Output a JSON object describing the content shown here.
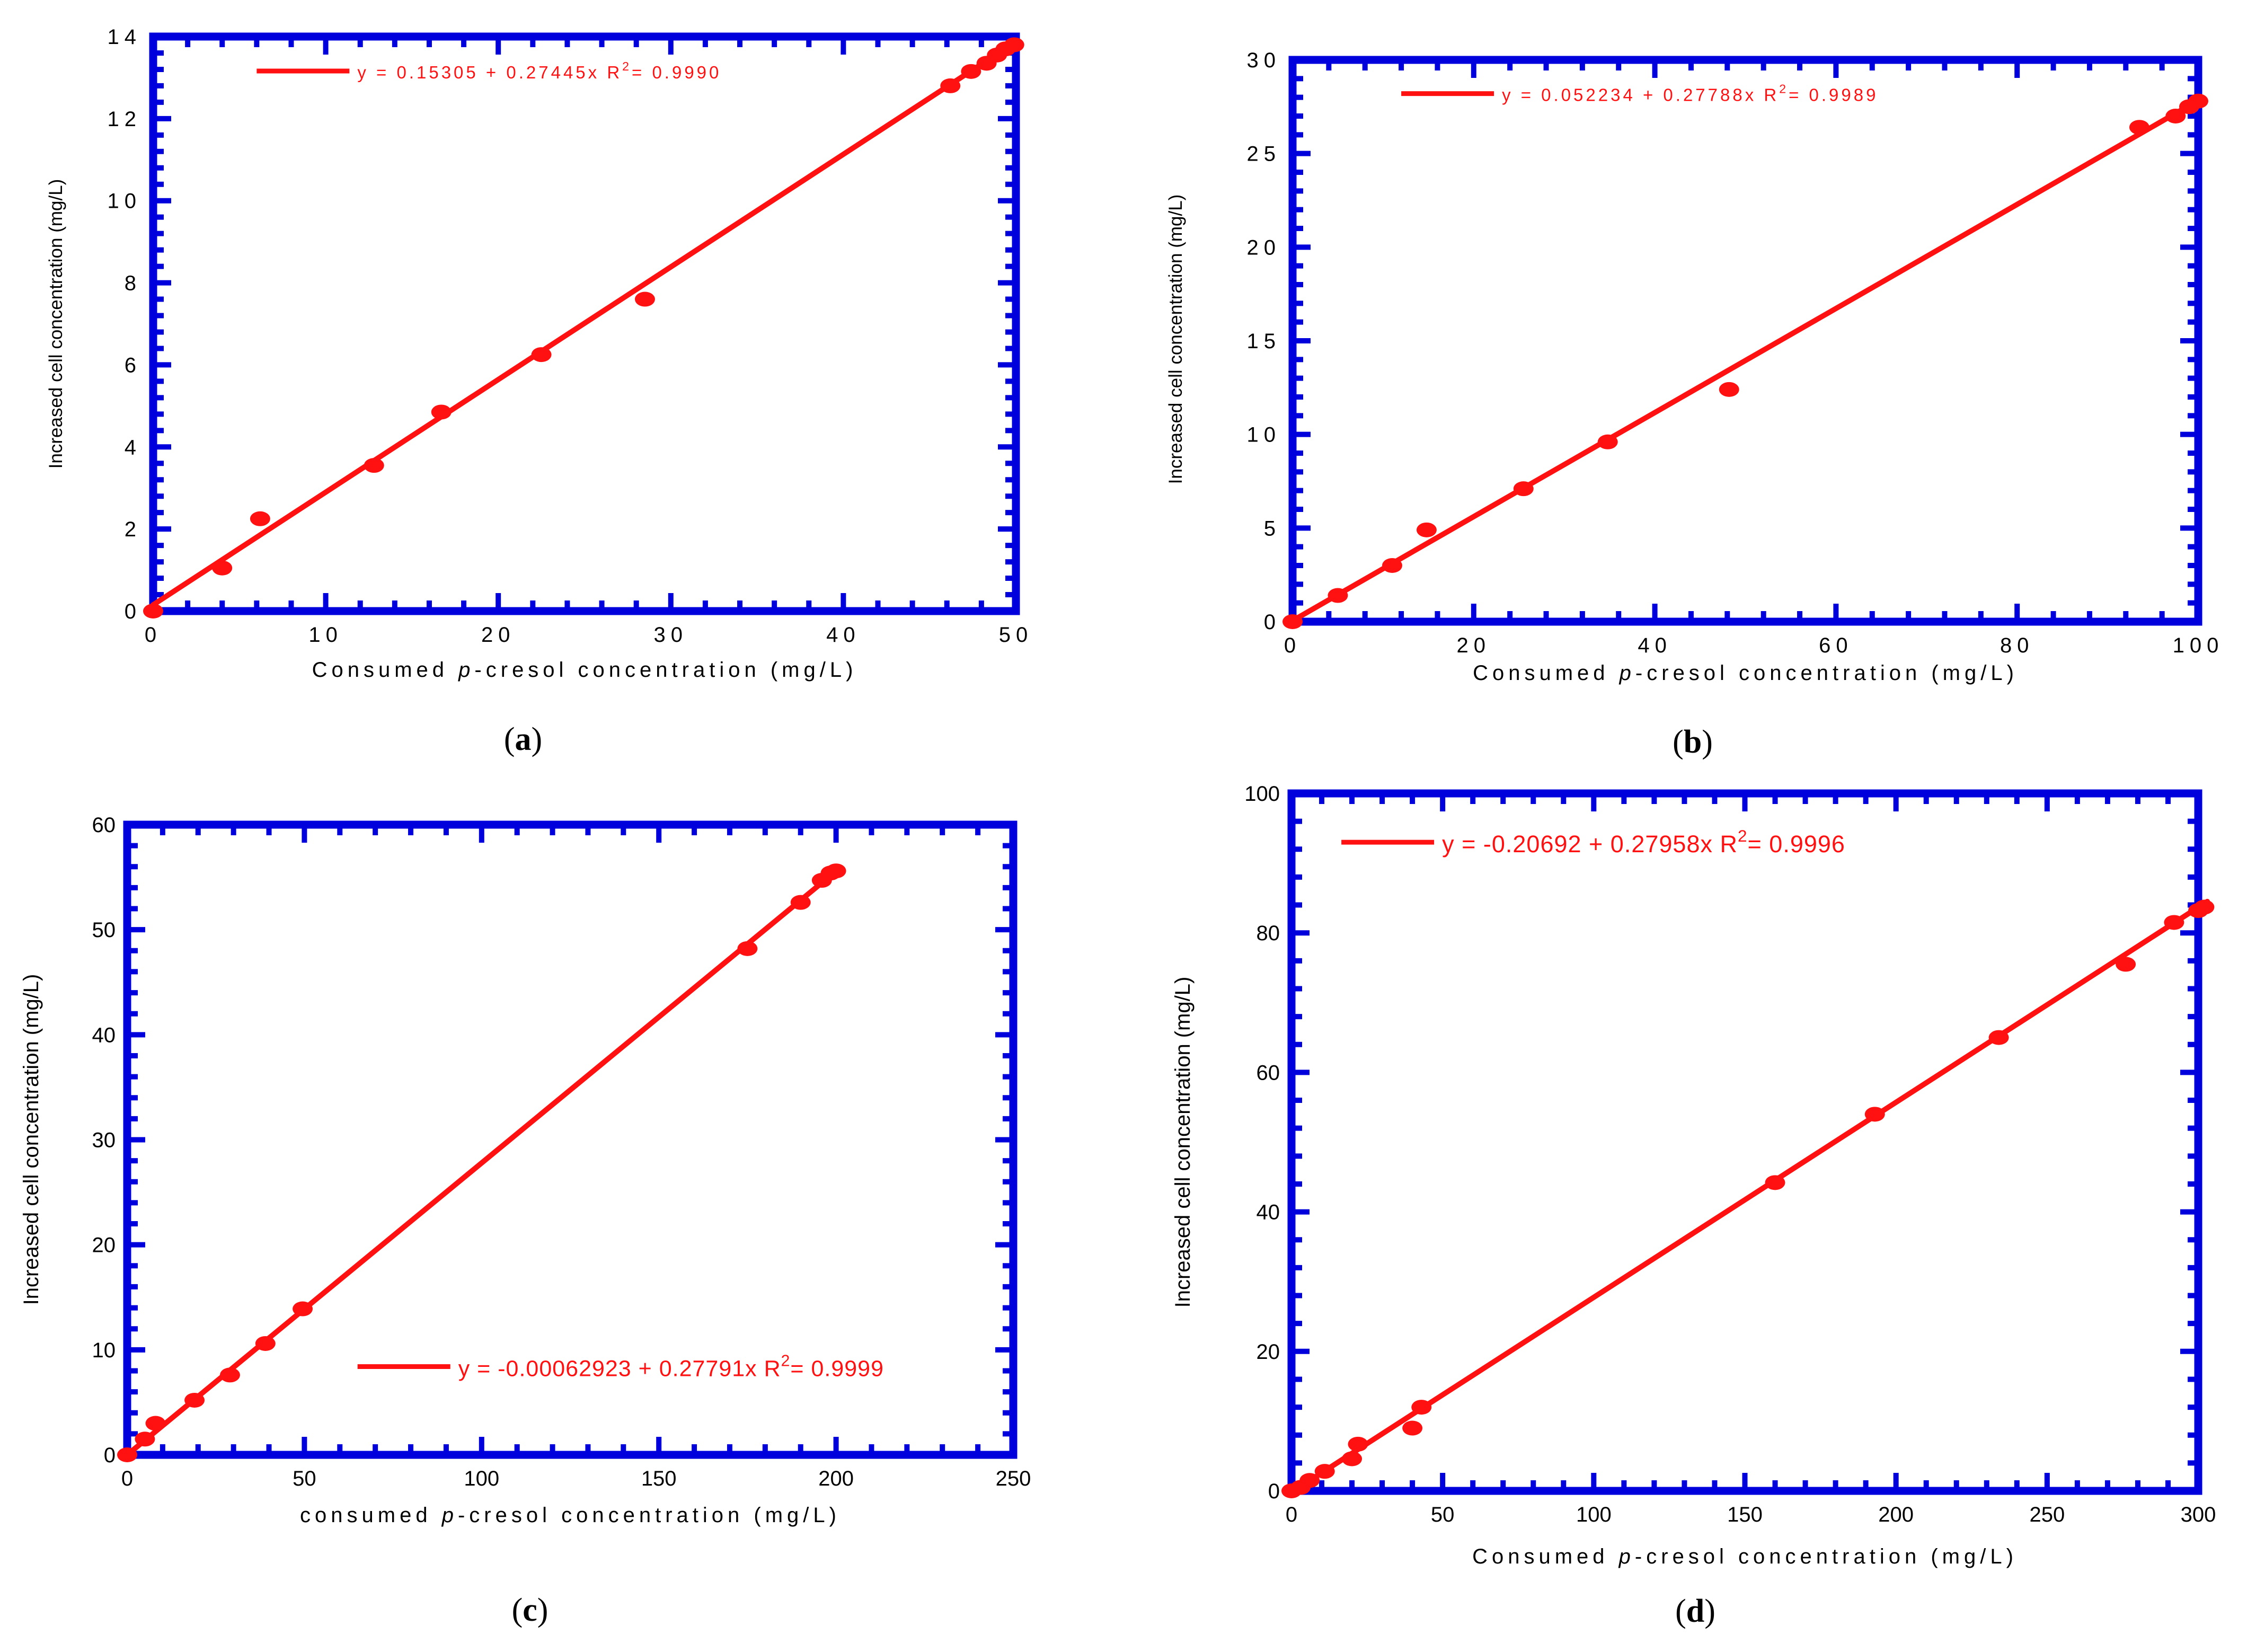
{
  "chart_data": [
    {
      "type": "scatter",
      "panel_label": "(a)",
      "xlabel_parts": [
        "Consumed ",
        "p",
        "-cresol concentration (mg/L)"
      ],
      "ylabel": "Increased cell concentration (mg/L)",
      "xlim": [
        0,
        50
      ],
      "ylim": [
        0,
        14
      ],
      "xticks": [
        0,
        10,
        20,
        30,
        40,
        50
      ],
      "yticks": [
        0,
        2,
        4,
        6,
        8,
        10,
        12,
        14
      ],
      "legend": {
        "prefix": "y = 0.15305 + 0.27445x   R",
        "sup": "2",
        "suffix": "= 0.9990",
        "placement": "top-left"
      },
      "fit": {
        "intercept": 0.15305,
        "slope": 0.27445,
        "x_range": [
          0,
          50
        ]
      },
      "points": [
        [
          0,
          0
        ],
        [
          4,
          1.05
        ],
        [
          6.2,
          2.25
        ],
        [
          12.8,
          3.55
        ],
        [
          16.7,
          4.85
        ],
        [
          22.5,
          6.25
        ],
        [
          28.5,
          7.6
        ],
        [
          46.2,
          12.8
        ],
        [
          47.4,
          13.15
        ],
        [
          48.3,
          13.35
        ],
        [
          48.9,
          13.55
        ],
        [
          49.4,
          13.7
        ],
        [
          49.9,
          13.8
        ]
      ]
    },
    {
      "type": "scatter",
      "panel_label": "(b)",
      "xlabel_parts": [
        "Consumed ",
        "p",
        "-cresol concentration (mg/L)"
      ],
      "ylabel": "Increased cell concentration (mg/L)",
      "xlim": [
        0,
        100
      ],
      "ylim": [
        0,
        30
      ],
      "xticks": [
        0,
        20,
        40,
        60,
        80,
        100
      ],
      "yticks": [
        0,
        5,
        10,
        15,
        20,
        25,
        30
      ],
      "legend": {
        "prefix": "y = 0.052234 + 0.27788x   R",
        "sup": "2",
        "suffix": "= 0.9989",
        "placement": "top-left"
      },
      "fit": {
        "intercept": 0.052234,
        "slope": 0.27788,
        "x_range": [
          0,
          100
        ]
      },
      "points": [
        [
          0,
          0
        ],
        [
          5,
          1.4
        ],
        [
          11,
          3
        ],
        [
          14.8,
          4.9
        ],
        [
          25.5,
          7.1
        ],
        [
          34.8,
          9.6
        ],
        [
          48.2,
          12.4
        ],
        [
          93.5,
          26.4
        ],
        [
          97.5,
          27
        ],
        [
          99,
          27.5
        ],
        [
          100,
          27.8
        ]
      ]
    },
    {
      "type": "scatter",
      "panel_label": "(c)",
      "xlabel_parts": [
        "consumed ",
        "p",
        "-cresol concentration (mg/L)"
      ],
      "ylabel": "Increased cell concentration (mg/L)",
      "xlim": [
        0,
        250
      ],
      "ylim": [
        0,
        60
      ],
      "xticks": [
        0,
        50,
        100,
        150,
        200,
        250
      ],
      "yticks": [
        0,
        10,
        20,
        30,
        40,
        50,
        60
      ],
      "legend": {
        "prefix": "y = -0.00062923 + 0.27791x   R",
        "sup": "2",
        "suffix": "= 0.9999",
        "placement": "bottom-right"
      },
      "fit": {
        "intercept": -0.00062923,
        "slope": 0.27791,
        "x_range": [
          0,
          200
        ]
      },
      "points": [
        [
          0,
          0
        ],
        [
          5,
          1.5
        ],
        [
          8,
          3
        ],
        [
          19,
          5.2
        ],
        [
          29,
          7.6
        ],
        [
          39,
          10.6
        ],
        [
          49.5,
          13.9
        ],
        [
          175,
          48.2
        ],
        [
          190,
          52.6
        ],
        [
          196,
          54.7
        ],
        [
          198.5,
          55.4
        ],
        [
          200,
          55.6
        ]
      ]
    },
    {
      "type": "scatter",
      "panel_label": "(d)",
      "xlabel_parts": [
        "Consumed ",
        "p",
        "-cresol concentration (mg/L)"
      ],
      "ylabel": "Increased cell concentration (mg/L)",
      "xlim": [
        0,
        300
      ],
      "ylim": [
        0,
        100
      ],
      "xticks": [
        0,
        50,
        100,
        150,
        200,
        250,
        300
      ],
      "yticks": [
        0,
        20,
        40,
        60,
        80,
        100
      ],
      "legend": {
        "prefix": "y = -0.20692 + 0.27958x   R",
        "sup": "2",
        "suffix": "= 0.9996",
        "placement": "top-left"
      },
      "fit": {
        "intercept": -0.20692,
        "slope": 0.27958,
        "x_range": [
          0,
          303
        ]
      },
      "points": [
        [
          0,
          0
        ],
        [
          3,
          0.5
        ],
        [
          6,
          1.5
        ],
        [
          11,
          2.8
        ],
        [
          20,
          4.6
        ],
        [
          22,
          6.7
        ],
        [
          40,
          9
        ],
        [
          43,
          12
        ],
        [
          160,
          44.2
        ],
        [
          193,
          54
        ],
        [
          234,
          65
        ],
        [
          276,
          75.5
        ],
        [
          292,
          81.5
        ],
        [
          300,
          83.2
        ],
        [
          302,
          83.7
        ]
      ]
    }
  ],
  "colors": {
    "frame": "#0000dd",
    "data": "#ff1111",
    "axis_text": "#000000",
    "caption": "#000000",
    "background": "#ffffff"
  }
}
